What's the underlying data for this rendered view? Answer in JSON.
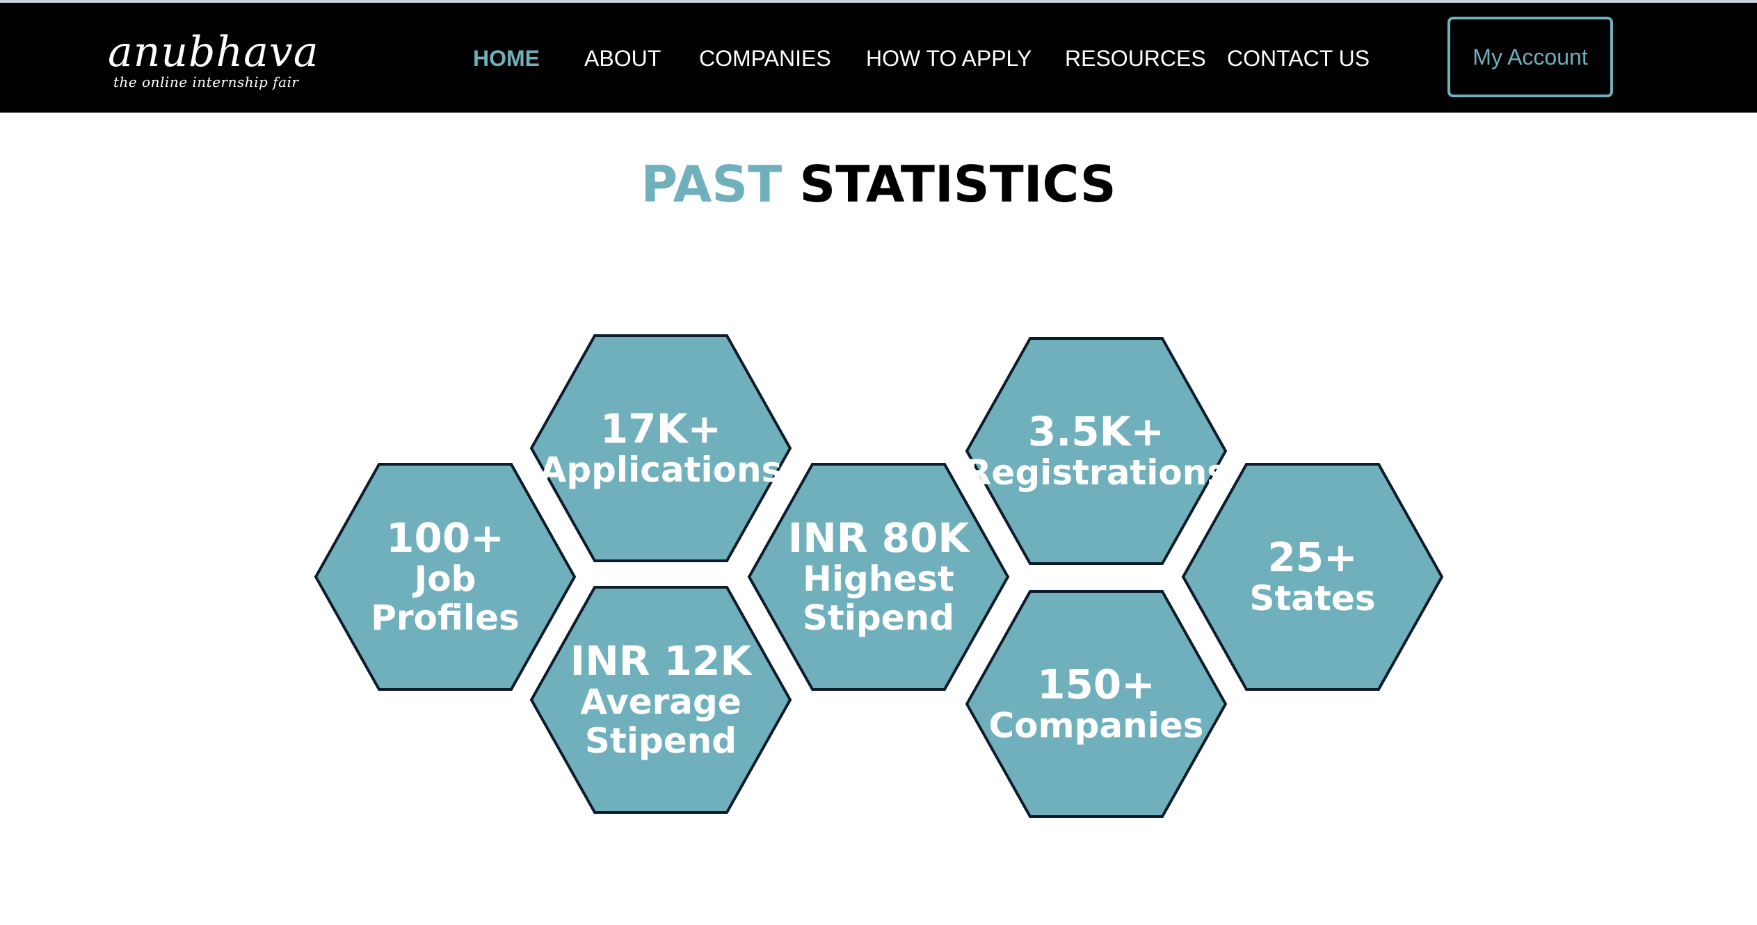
{
  "brand": {
    "name": "anubhava",
    "tagline": "the online internship fair"
  },
  "nav": {
    "items": [
      {
        "label": "HOME",
        "active": true
      },
      {
        "label": "ABOUT",
        "active": false
      },
      {
        "label": "COMPANIES",
        "active": false
      },
      {
        "label": "HOW TO APPLY",
        "active": false
      },
      {
        "label": "RESOURCES",
        "active": false
      },
      {
        "label": "CONTACT US",
        "active": false
      }
    ],
    "account_label": "My Account"
  },
  "section": {
    "title_accent": "PAST",
    "title_rest": "STATISTICS"
  },
  "stats": [
    {
      "value": "100+",
      "label": "Job\nProfiles"
    },
    {
      "value": "17K+",
      "label": "Applications"
    },
    {
      "value": "INR 12K",
      "label": "Average\nStipend"
    },
    {
      "value": "INR 80K",
      "label": "Highest\nStipend"
    },
    {
      "value": "3.5K+",
      "label": "Registrations"
    },
    {
      "value": "150+",
      "label": "Companies"
    },
    {
      "value": "25+",
      "label": "States"
    }
  ],
  "colors": {
    "accent": "#6fb0bc",
    "navbar_bg": "#000000",
    "hex_fill": "#6fb0bc",
    "hex_stroke": "#0d1b2a"
  }
}
